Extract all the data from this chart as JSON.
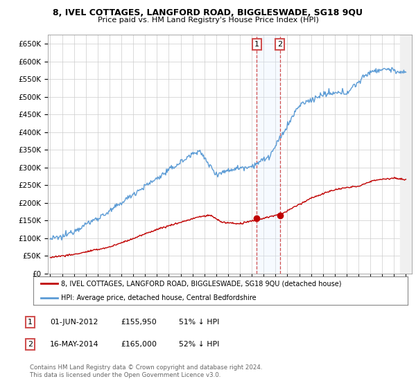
{
  "title_line1": "8, IVEL COTTAGES, LANGFORD ROAD, BIGGLESWADE, SG18 9QU",
  "title_line2": "Price paid vs. HM Land Registry's House Price Index (HPI)",
  "ylim": [
    0,
    675000
  ],
  "yticks": [
    0,
    50000,
    100000,
    150000,
    200000,
    250000,
    300000,
    350000,
    400000,
    450000,
    500000,
    550000,
    600000,
    650000
  ],
  "ytick_labels": [
    "£0",
    "£50K",
    "£100K",
    "£150K",
    "£200K",
    "£250K",
    "£300K",
    "£350K",
    "£400K",
    "£450K",
    "£500K",
    "£550K",
    "£600K",
    "£650K"
  ],
  "hpi_color": "#5b9bd5",
  "price_color": "#c00000",
  "marker_color": "#c00000",
  "vline_color": "#d05050",
  "shade_color": "#ddeeff",
  "sale1_year": 2012.42,
  "sale2_year": 2014.37,
  "sale1_price": 155950,
  "sale2_price": 165000,
  "legend_entry1": "8, IVEL COTTAGES, LANGFORD ROAD, BIGGLESWADE, SG18 9QU (detached house)",
  "legend_entry2": "HPI: Average price, detached house, Central Bedfordshire",
  "table_row1": [
    "1",
    "01-JUN-2012",
    "£155,950",
    "51% ↓ HPI"
  ],
  "table_row2": [
    "2",
    "16-MAY-2014",
    "£165,000",
    "52% ↓ HPI"
  ],
  "footnote": "Contains HM Land Registry data © Crown copyright and database right 2024.\nThis data is licensed under the Open Government Licence v3.0.",
  "background_color": "#ffffff",
  "grid_color": "#cccccc"
}
